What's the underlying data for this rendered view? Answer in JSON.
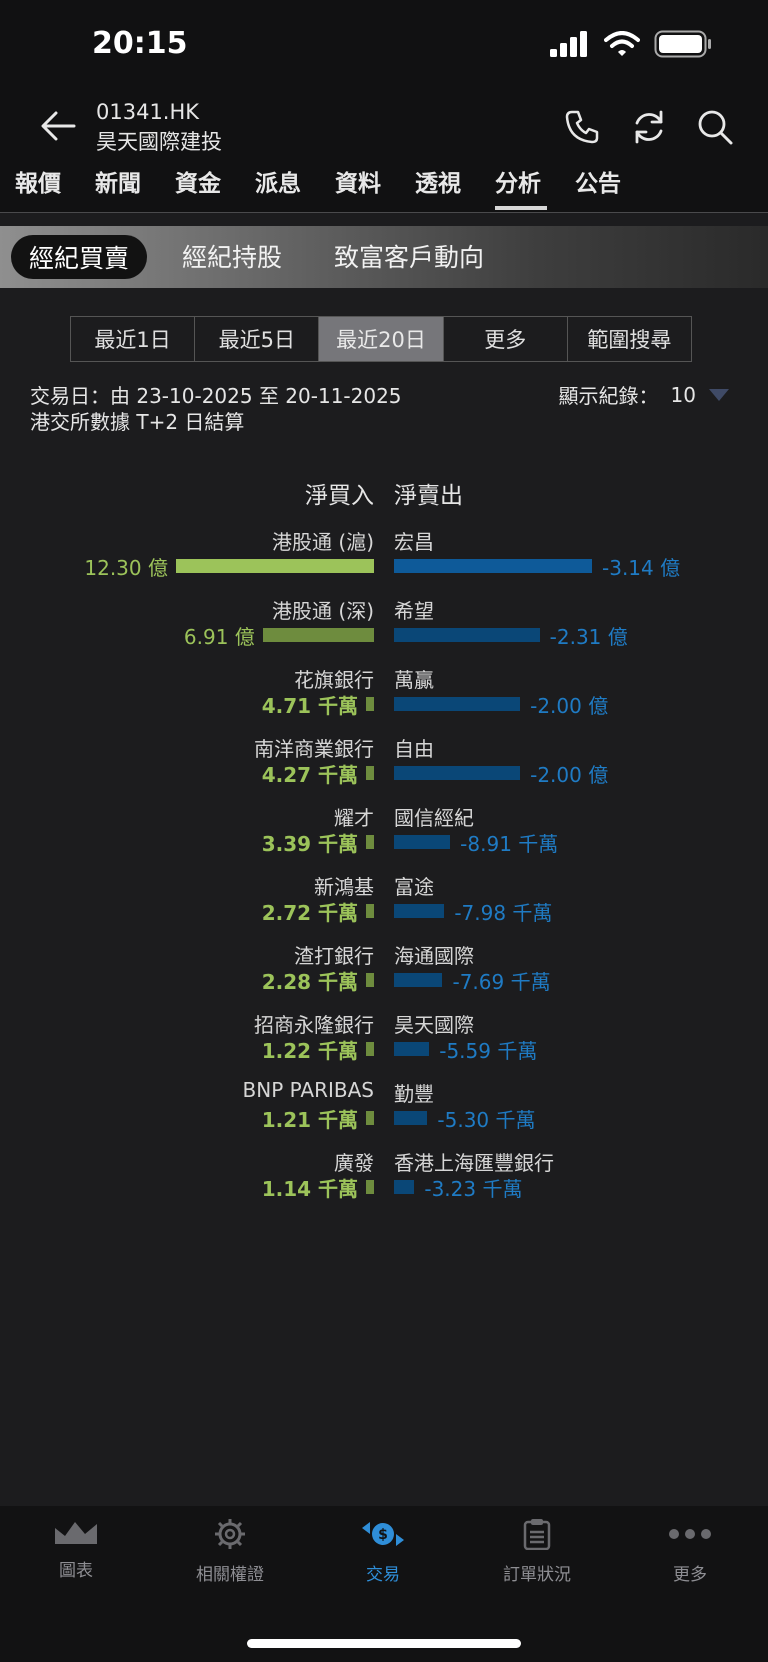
{
  "status": {
    "time": "20:15"
  },
  "header": {
    "code": "01341.HK",
    "name": "昊天國際建投"
  },
  "tabs": [
    {
      "label": "報價"
    },
    {
      "label": "新聞"
    },
    {
      "label": "資金"
    },
    {
      "label": "派息"
    },
    {
      "label": "資料"
    },
    {
      "label": "透視"
    },
    {
      "label": "分析"
    },
    {
      "label": "公告"
    }
  ],
  "active_tab": "分析",
  "subtabs": [
    {
      "label": "經紀買賣"
    },
    {
      "label": "經紀持股"
    },
    {
      "label": "致富客戶動向"
    }
  ],
  "periods": [
    {
      "label": "最近1日"
    },
    {
      "label": "最近5日"
    },
    {
      "label": "最近20日"
    },
    {
      "label": "更多"
    },
    {
      "label": "範圍搜尋"
    }
  ],
  "selected_period": "最近20日",
  "info": {
    "trade_date": "交易日：由 23-10-2025 至 20-11-2025",
    "settlement": "港交所數據 T+2 日結算",
    "records_label": "顯示紀錄：",
    "records_value": "10"
  },
  "columns": {
    "buy": "淨買入",
    "sell": "淨賣出"
  },
  "colors": {
    "buy_bar": "#9cc35a",
    "buy_bar_dim": "#6e8c3e",
    "sell_bar": "#0e5a99",
    "sell_bar_dim": "#0a4777",
    "buy_text": "#9cc35a",
    "sell_text": "#1f7bc4"
  },
  "chart_data": {
    "type": "bar",
    "unit_note": "億 = 100,000,000; 千萬 = 10,000,000",
    "rows": [
      {
        "buyer": "港股通 (滬)",
        "buy_value": 12.3,
        "buy_label": "12.30 億",
        "seller": "宏昌",
        "sell_value": -3.14,
        "sell_label": "-3.14 億"
      },
      {
        "buyer": "港股通 (深)",
        "buy_value": 6.91,
        "buy_label": "6.91 億",
        "seller": "希望",
        "sell_value": -2.31,
        "sell_label": "-2.31 億"
      },
      {
        "buyer": "花旗銀行",
        "buy_value": 0.471,
        "buy_label": "4.71 千萬",
        "seller": "萬贏",
        "sell_value": -2.0,
        "sell_label": "-2.00 億"
      },
      {
        "buyer": "南洋商業銀行",
        "buy_value": 0.427,
        "buy_label": "4.27 千萬",
        "seller": "自由",
        "sell_value": -2.0,
        "sell_label": "-2.00 億"
      },
      {
        "buyer": "耀才",
        "buy_value": 0.339,
        "buy_label": "3.39 千萬",
        "seller": "國信經紀",
        "sell_value": -0.891,
        "sell_label": "-8.91 千萬"
      },
      {
        "buyer": "新鴻基",
        "buy_value": 0.272,
        "buy_label": "2.72 千萬",
        "seller": "富途",
        "sell_value": -0.798,
        "sell_label": "-7.98 千萬"
      },
      {
        "buyer": "渣打銀行",
        "buy_value": 0.228,
        "buy_label": "2.28 千萬",
        "seller": "海通國際",
        "sell_value": -0.769,
        "sell_label": "-7.69 千萬"
      },
      {
        "buyer": "招商永隆銀行",
        "buy_value": 0.122,
        "buy_label": "1.22 千萬",
        "seller": "昊天國際",
        "sell_value": -0.559,
        "sell_label": "-5.59 千萬"
      },
      {
        "buyer": "BNP PARIBAS",
        "buy_value": 0.121,
        "buy_label": "1.21 千萬",
        "seller": "勤豐",
        "sell_value": -0.53,
        "sell_label": "-5.30 千萬"
      },
      {
        "buyer": "廣發",
        "buy_value": 0.114,
        "buy_label": "1.14 千萬",
        "seller": "香港上海匯豐銀行",
        "sell_value": -0.323,
        "sell_label": "-3.23 千萬"
      }
    ]
  },
  "bottom_nav": [
    {
      "label": "圖表",
      "icon": "chart-icon"
    },
    {
      "label": "相關權證",
      "icon": "gear-icon"
    },
    {
      "label": "交易",
      "icon": "trade-icon"
    },
    {
      "label": "訂單狀況",
      "icon": "clipboard-icon"
    },
    {
      "label": "更多",
      "icon": "more-icon"
    }
  ],
  "active_nav": "交易"
}
